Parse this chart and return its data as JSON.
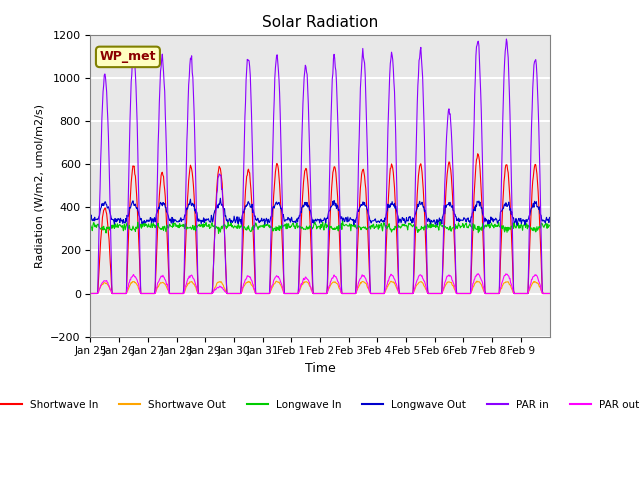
{
  "title": "Solar Radiation",
  "xlabel": "Time",
  "ylabel": "Radiation (W/m2, umol/m2/s)",
  "ylim": [
    -200,
    1200
  ],
  "yticks": [
    -200,
    0,
    200,
    400,
    600,
    800,
    1000,
    1200
  ],
  "x_labels": [
    "Jan 25",
    "Jan 26",
    "Jan 27",
    "Jan 28",
    "Jan 29",
    "Jan 30",
    "Jan 31",
    "Feb 1",
    "Feb 2",
    "Feb 3",
    "Feb 4",
    "Feb 5",
    "Feb 6",
    "Feb 7",
    "Feb 8",
    "Feb 9"
  ],
  "num_days": 16,
  "station_label": "WP_met",
  "legend": [
    {
      "label": "Shortwave In",
      "color": "#FF0000"
    },
    {
      "label": "Shortwave Out",
      "color": "#FFA500"
    },
    {
      "label": "Longwave In",
      "color": "#00CC00"
    },
    {
      "label": "Longwave Out",
      "color": "#0000CC"
    },
    {
      "label": "PAR in",
      "color": "#8B00FF"
    },
    {
      "label": "PAR out",
      "color": "#FF00FF"
    }
  ],
  "sw_in_peaks": [
    400,
    590,
    560,
    590,
    590,
    580,
    600,
    580,
    590,
    580,
    600,
    600,
    610,
    650,
    600,
    600
  ],
  "sw_out_peaks": [
    50,
    55,
    50,
    55,
    55,
    55,
    55,
    55,
    55,
    55,
    55,
    55,
    55,
    55,
    55,
    55
  ],
  "lw_in_base": 315,
  "lw_out_base": 340,
  "par_in_peaks": [
    1010,
    1120,
    1090,
    1090,
    560,
    1100,
    1100,
    1050,
    1100,
    1120,
    1120,
    1130,
    850,
    1170,
    1170,
    1100
  ],
  "par_out_peaks": [
    60,
    85,
    80,
    85,
    30,
    80,
    80,
    75,
    80,
    85,
    85,
    85,
    85,
    90,
    90,
    85
  ],
  "background_color": "#E8E8E8",
  "grid_color": "#FFFFFF",
  "box_color": "#FFFFC0"
}
